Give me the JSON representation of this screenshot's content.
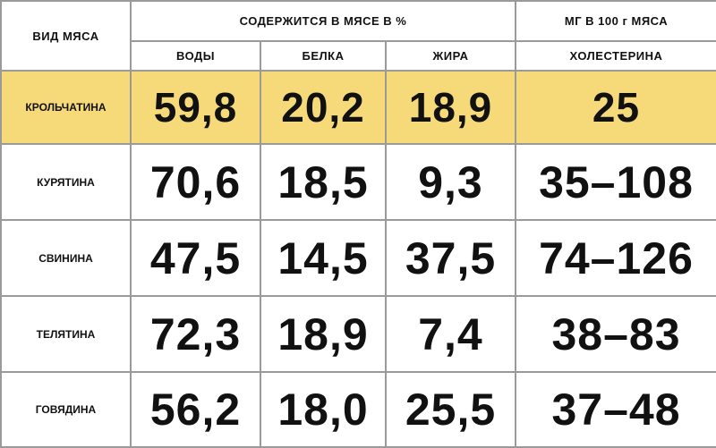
{
  "header": {
    "row_label": "ВИД МЯСА",
    "group_percent": "СОДЕРЖИТСЯ В МЯСЕ В %",
    "group_mg": "МГ В 100 г МЯСА",
    "columns": [
      "ВОДЫ",
      "БЕЛКА",
      "ЖИРА",
      "ХОЛЕСТЕРИНА"
    ]
  },
  "table": {
    "rows": [
      [
        "КРОЛЬЧАТИНА",
        "59,8",
        "20,2",
        "18,9",
        "25"
      ],
      [
        "КУРЯТИНА",
        "70,6",
        "18,5",
        "9,3",
        "35–108"
      ],
      [
        "СВИНИНА",
        "47,5",
        "14,5",
        "37,5",
        "74–126"
      ],
      [
        "ТЕЛЯТИНА",
        "72,3",
        "18,9",
        "7,4",
        "38–83"
      ],
      [
        "ГОВЯДИНА",
        "56,2",
        "18,0",
        "25,5",
        "37–48"
      ]
    ],
    "highlight_row": 0
  }
}
